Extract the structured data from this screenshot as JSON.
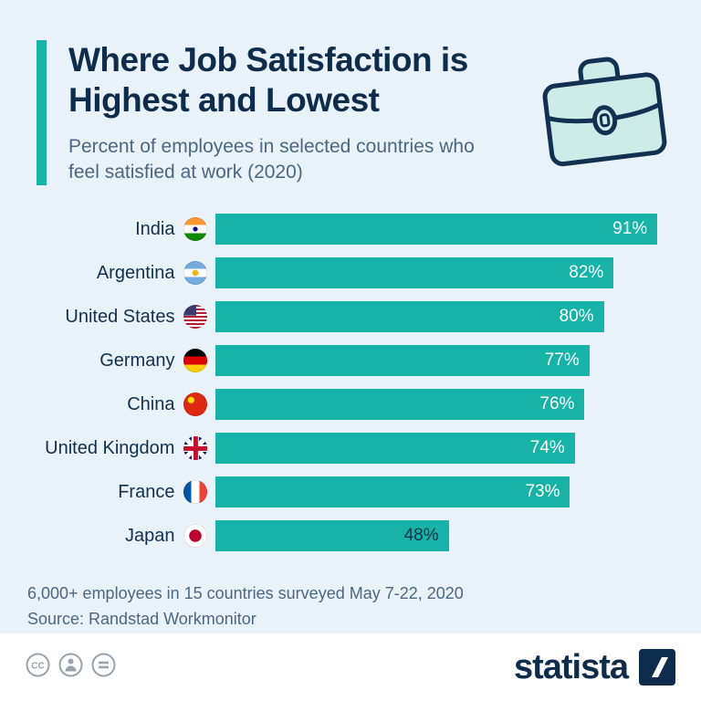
{
  "meta": {
    "background_color": "#e9f2f8",
    "accent_color": "#16b3a6",
    "navy_color": "#0e2c4c",
    "subtitle_color": "#4a6784"
  },
  "header": {
    "title": "Where Job Satisfaction is Highest and Lowest",
    "subtitle": "Percent of employees in selected countries who feel satisfied at work (2020)",
    "icon": "briefcase-icon"
  },
  "chart_data": {
    "type": "bar",
    "orientation": "horizontal",
    "title": "Where Job Satisfaction is Highest and Lowest",
    "subtitle": "Percent of employees in selected countries who feel satisfied at work (2020)",
    "unit": "%",
    "xlim": [
      0,
      100
    ],
    "grid": false,
    "legend": false,
    "bar_color": "#16b3a6",
    "categories": [
      "India",
      "Argentina",
      "United States",
      "Germany",
      "China",
      "United Kingdom",
      "France",
      "Japan"
    ],
    "values": [
      91,
      82,
      80,
      77,
      76,
      74,
      73,
      48
    ],
    "flags": [
      "in",
      "ar",
      "us",
      "de",
      "cn",
      "gb",
      "fr",
      "jp"
    ],
    "value_colors": [
      "#ffffff",
      "#ffffff",
      "#ffffff",
      "#ffffff",
      "#ffffff",
      "#ffffff",
      "#ffffff",
      "#0e3050"
    ]
  },
  "footer": {
    "note": "6,000+ employees in 15 countries surveyed May 7-22, 2020",
    "source": "Source: Randstad Workmonitor"
  },
  "bottombar": {
    "license_icons": [
      "cc-icon",
      "attribution-icon",
      "equals-icon"
    ],
    "brand": "statista"
  }
}
